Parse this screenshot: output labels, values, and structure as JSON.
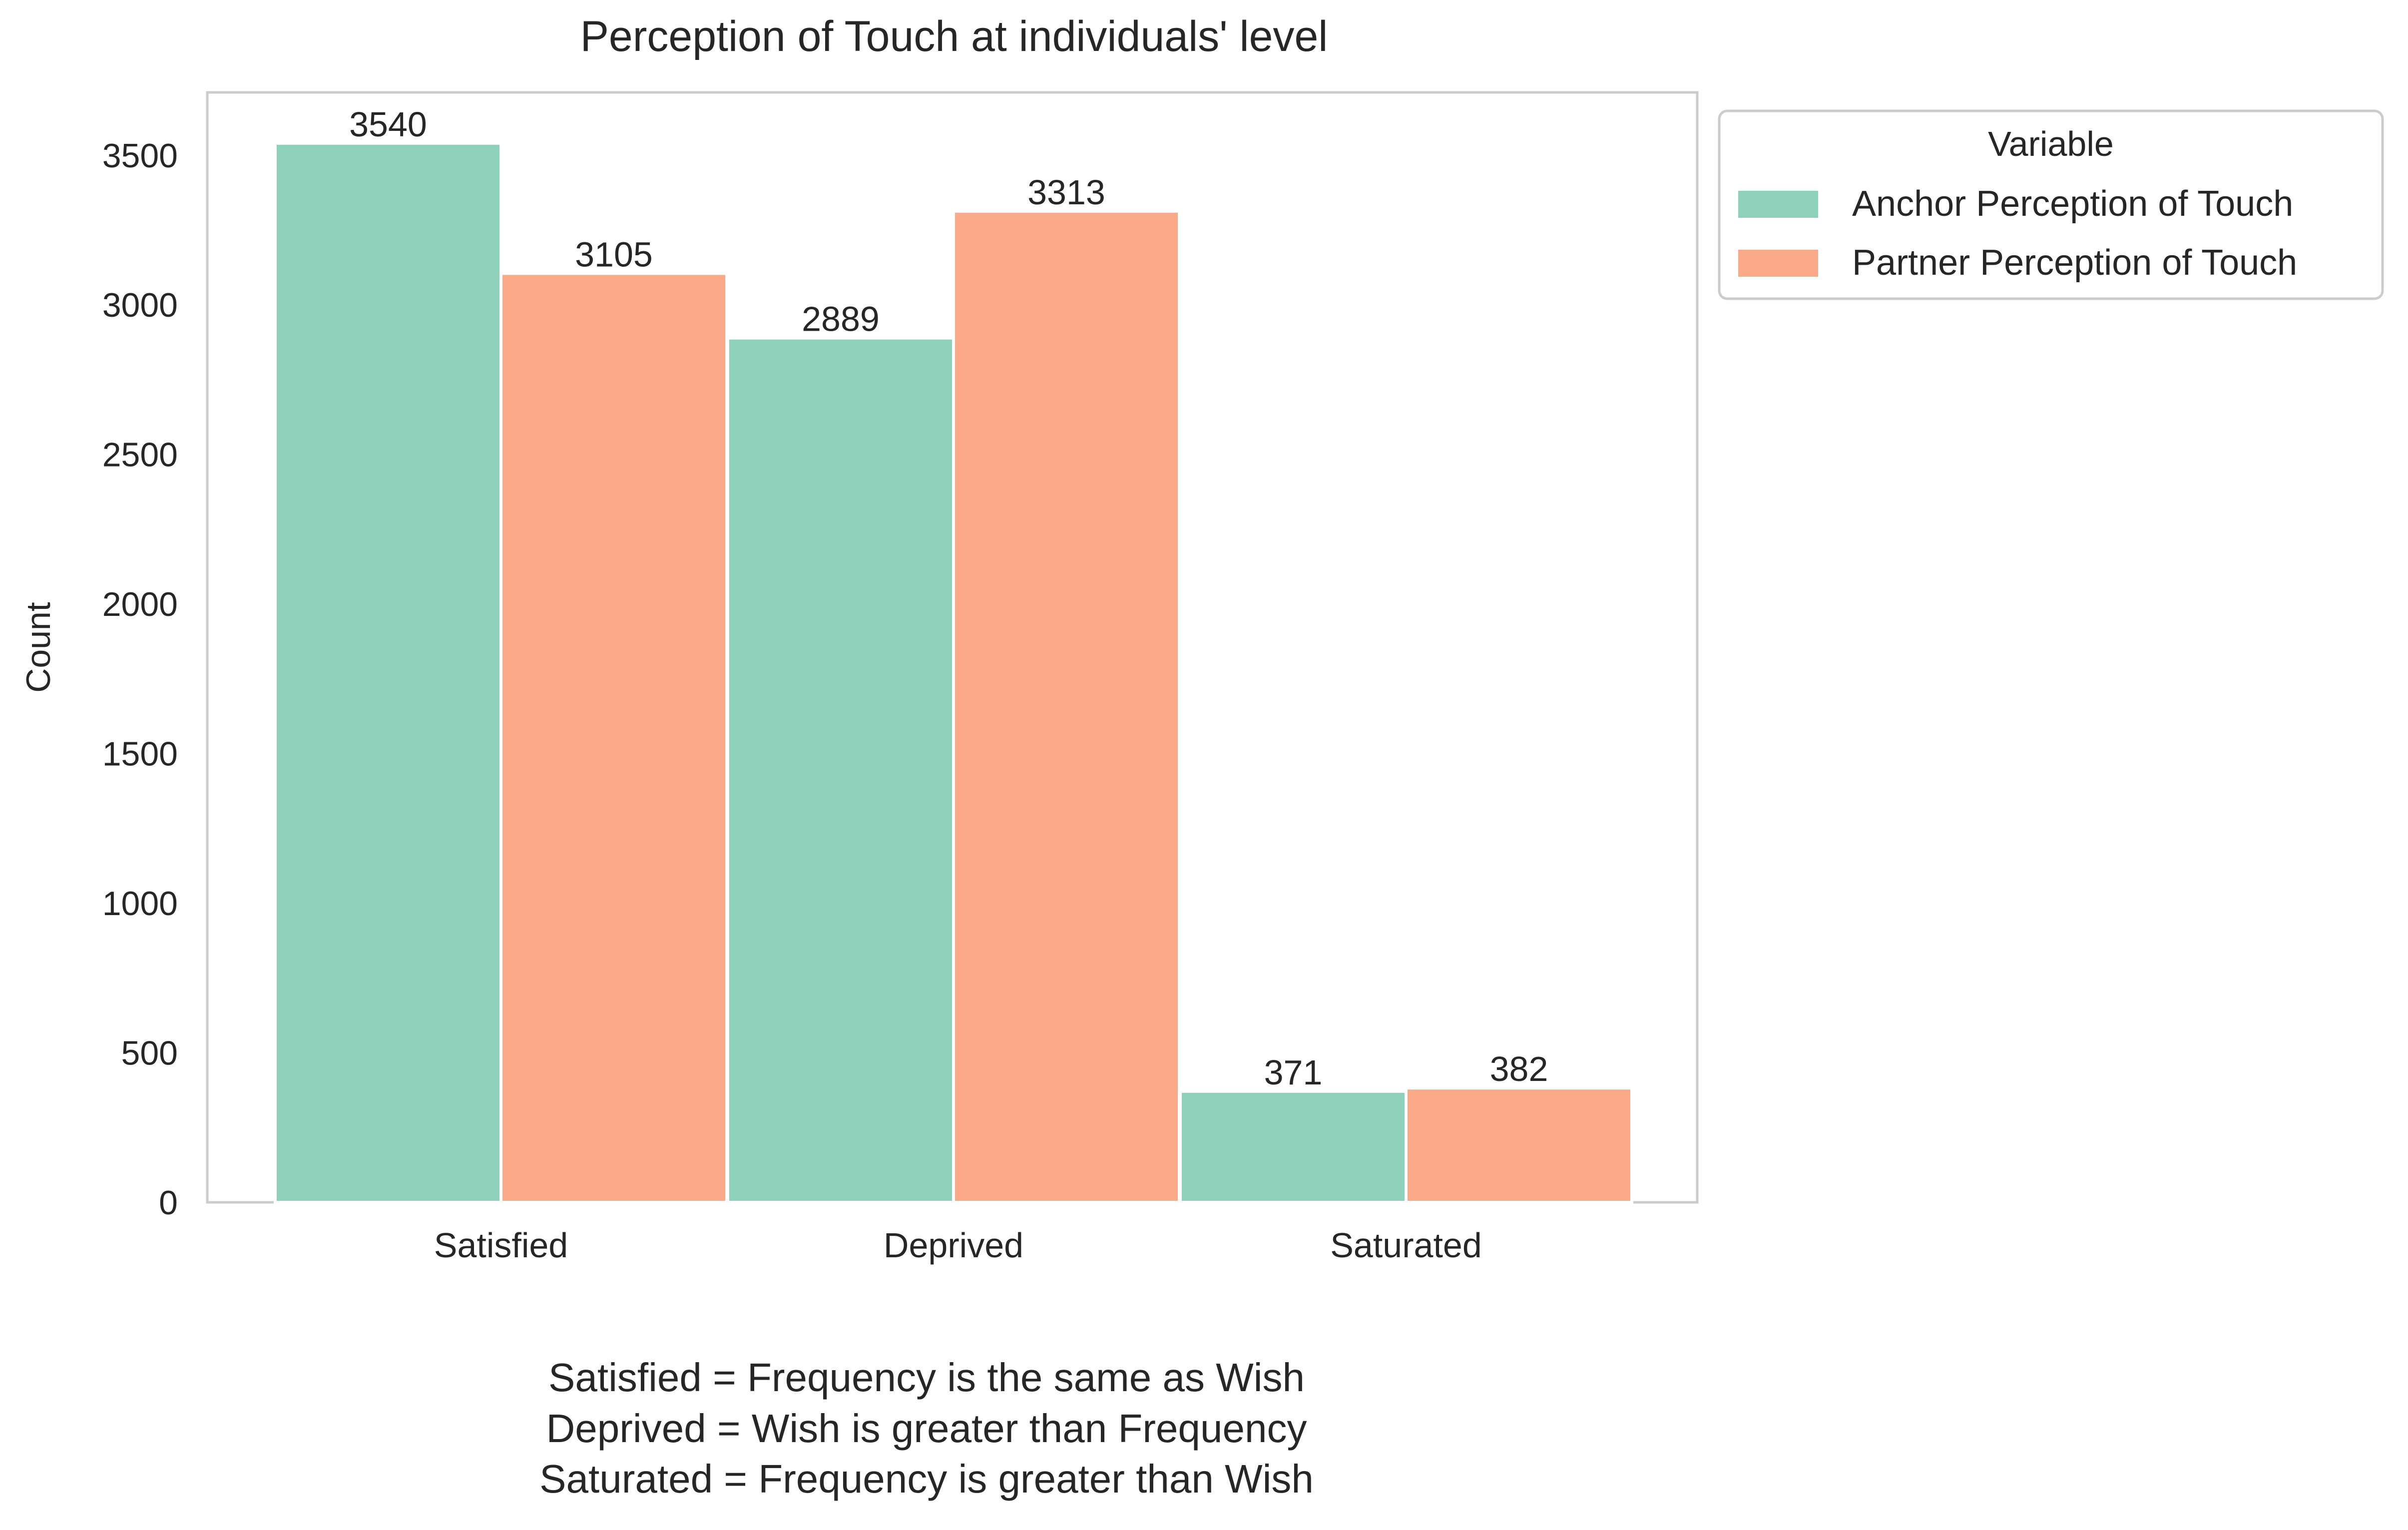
{
  "chart_data": {
    "type": "bar",
    "title": "Perception of Touch at individuals' level",
    "xlabel": "",
    "ylabel": "Count",
    "categories": [
      "Satisfied",
      "Deprived",
      "Saturated"
    ],
    "series": [
      {
        "name": "Anchor Perception of Touch",
        "color": "#8ed1bb",
        "values": [
          3540,
          2889,
          371
        ]
      },
      {
        "name": "Partner Perception of Touch",
        "color": "#fbaa89",
        "values": [
          3105,
          3313,
          382
        ]
      }
    ],
    "ylim": [
      0,
      3710
    ],
    "yticks": [
      0,
      500,
      1000,
      1500,
      2000,
      2500,
      3000,
      3500
    ],
    "grid": false,
    "legend": {
      "title": "Variable",
      "placement": "outside-top-right"
    },
    "footnote": [
      "Satisfied = Frequency is the same as Wish",
      "Deprived = Wish is greater than Frequency",
      "Saturated = Frequency is greater than Wish"
    ]
  }
}
